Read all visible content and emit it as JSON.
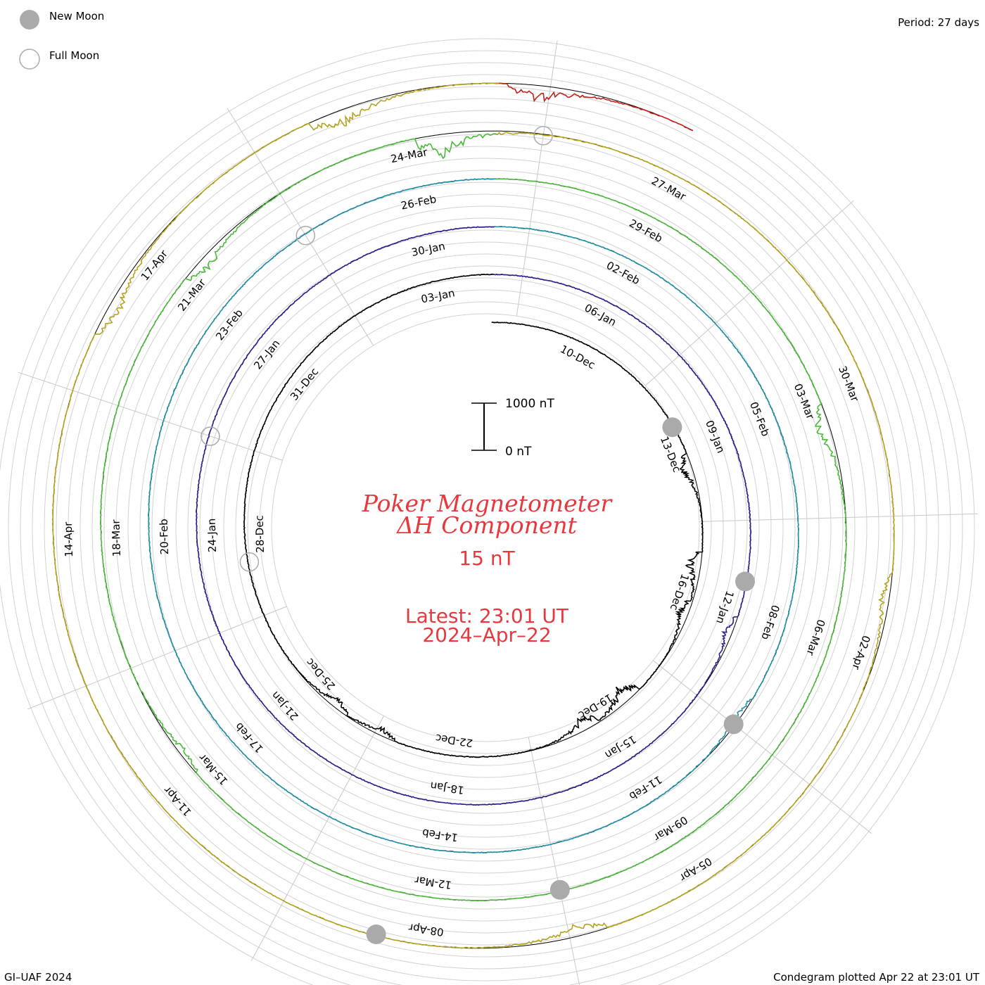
{
  "legend": {
    "new_moon_label": "New Moon",
    "full_moon_label": "Full Moon",
    "new_moon_color": "#aaaaaa",
    "full_moon_stroke": "#aaaaaa"
  },
  "period_label": "Period: 27 days",
  "title": {
    "line1": "Poker Magnetometer",
    "line2": "ΔH Component",
    "value": "15 nT",
    "latest_line1": "Latest: 23:01 UT",
    "latest_line2": "2024–Apr–22"
  },
  "scale_bar": {
    "top_label": "1000 nT",
    "bottom_label": "0 nT"
  },
  "footer": {
    "left": "GI–UAF 2024",
    "right": "Condegram plotted Apr 22 at 23:01 UT"
  },
  "chart_data": {
    "type": "line",
    "period_days": 27,
    "start_date": "2023-12-08",
    "end_date": "2024-04-22",
    "value_unit": "nT",
    "scale_bar_nT": 1000,
    "cycles": [
      {
        "index": 0,
        "color": "#000000",
        "labels": [
          "10-Dec",
          "13-Dec",
          "16-Dec",
          "19-Dec",
          "22-Dec",
          "25-Dec",
          "28-Dec",
          "31-Dec",
          "03-Jan"
        ]
      },
      {
        "index": 1,
        "color": "#2b1f8c",
        "labels": [
          "06-Jan",
          "09-Jan",
          "12-Jan",
          "15-Jan",
          "18-Jan",
          "21-Jan",
          "24-Jan",
          "27-Jan",
          "30-Jan"
        ]
      },
      {
        "index": 2,
        "color": "#1f8fa8",
        "labels": [
          "02-Feb",
          "05-Feb",
          "08-Feb",
          "11-Feb",
          "14-Feb",
          "17-Feb",
          "20-Feb",
          "23-Feb",
          "26-Feb"
        ]
      },
      {
        "index": 3,
        "color": "#4bb83a",
        "labels": [
          "29-Feb",
          "03-Mar",
          "06-Mar",
          "09-Mar",
          "12-Mar",
          "15-Mar",
          "18-Mar",
          "21-Mar",
          "24-Mar"
        ]
      },
      {
        "index": 4,
        "color": "#b5a31e",
        "labels": [
          "27-Mar",
          "30-Mar",
          "02-Apr",
          "05-Apr",
          "08-Apr",
          "11-Apr",
          "14-Apr",
          "17-Apr"
        ]
      },
      {
        "index": 5,
        "color": "#c0221a"
      }
    ],
    "disturbances": [
      {
        "date": "2023-12-13",
        "nT": 220
      },
      {
        "date": "2023-12-15",
        "nT": 260
      },
      {
        "date": "2023-12-16",
        "nT": 170
      },
      {
        "date": "2023-12-18",
        "nT": 310
      },
      {
        "date": "2023-12-19",
        "nT": 230
      },
      {
        "date": "2023-12-23",
        "nT": 140
      },
      {
        "date": "2023-12-24",
        "nT": 160
      },
      {
        "date": "2024-01-12",
        "nT": 140
      },
      {
        "date": "2024-02-09",
        "nT": 100
      },
      {
        "date": "2024-03-03",
        "nT": 260
      },
      {
        "date": "2024-03-15",
        "nT": 120
      },
      {
        "date": "2024-03-21",
        "nT": 230
      },
      {
        "date": "2024-03-24",
        "nT": 400
      },
      {
        "date": "2024-04-01",
        "nT": 160
      },
      {
        "date": "2024-04-06",
        "nT": 220
      },
      {
        "date": "2024-04-16",
        "nT": 260
      },
      {
        "date": "2024-04-19",
        "nT": 300
      },
      {
        "date": "2024-04-21",
        "nT": 280
      }
    ],
    "new_moons": [
      "2023-12-12",
      "2024-01-11",
      "2024-02-09",
      "2024-03-10",
      "2024-04-08"
    ],
    "full_moons": [
      "2023-12-27",
      "2024-01-25",
      "2024-02-24",
      "2024-03-25"
    ]
  }
}
